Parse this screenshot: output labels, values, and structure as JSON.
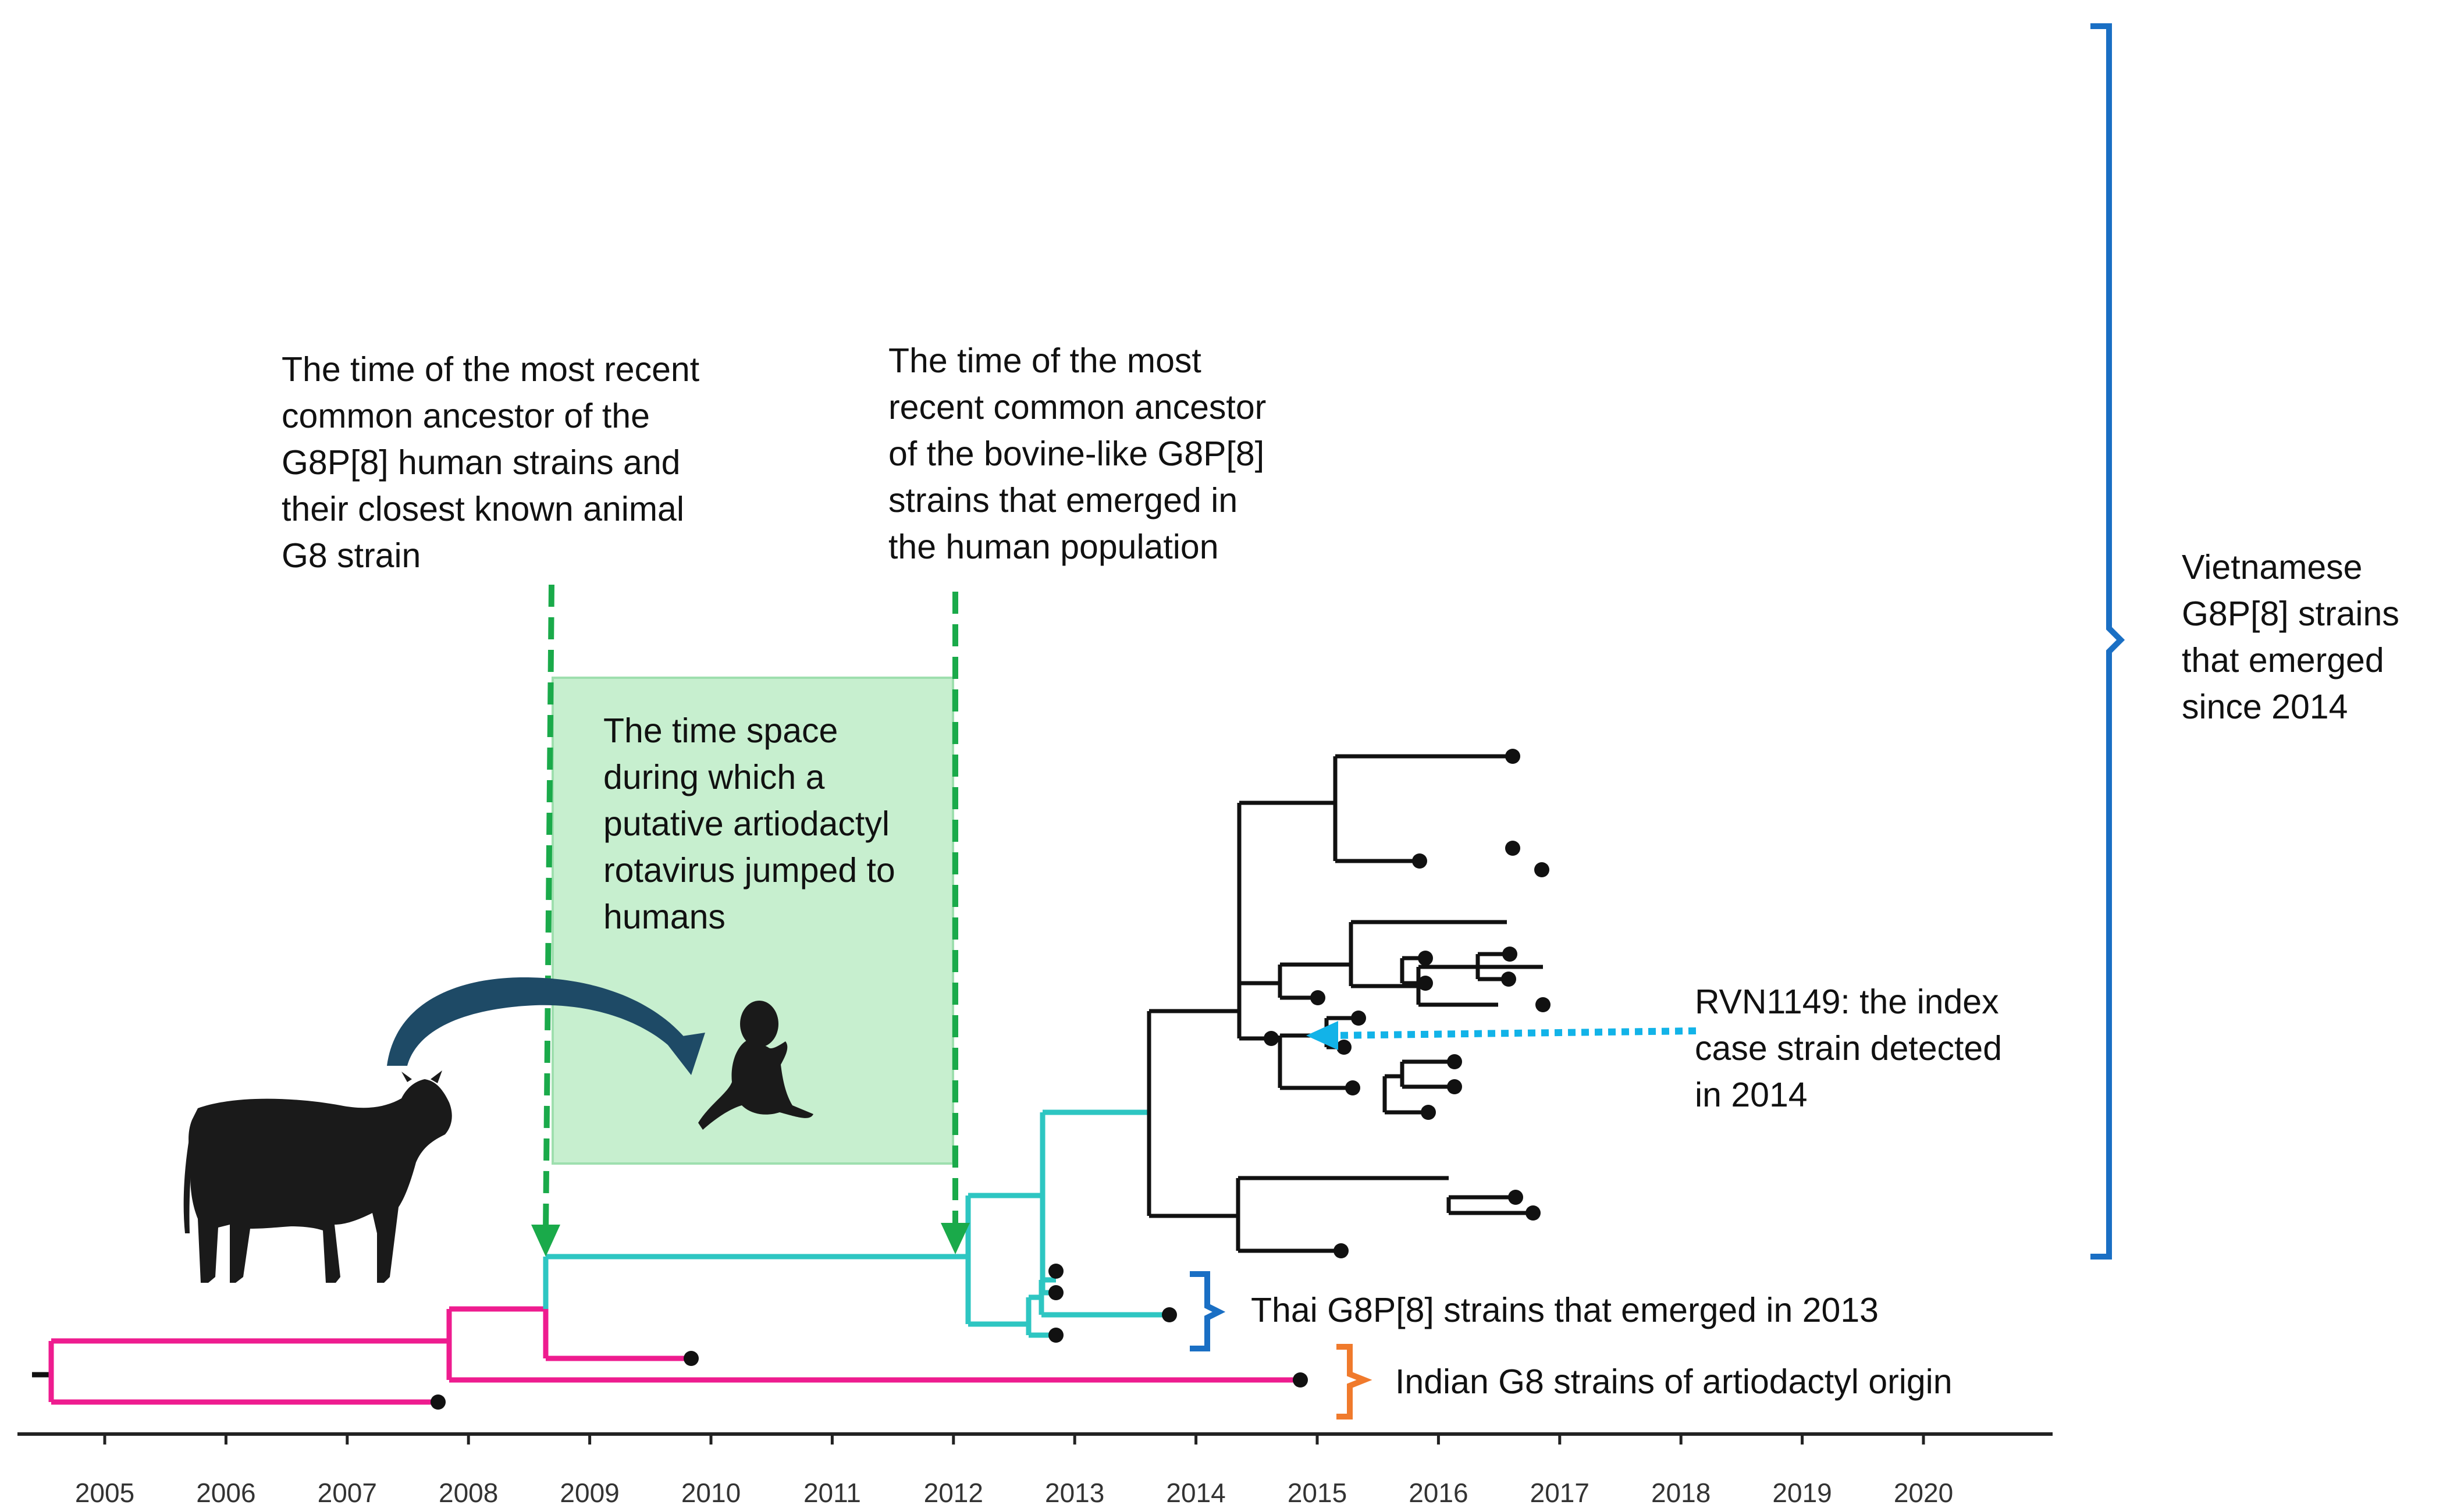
{
  "colors": {
    "pink": "#ee1c8f",
    "teal": "#2ec6c2",
    "black": "#111111",
    "green": "#1aaa4a",
    "green_fill": "#c7efcf",
    "navy": "#1e4a66",
    "blue_bracket": "#1a6fc4",
    "orange_bracket": "#f07a2c",
    "dotted_arrow": "#12b3e8"
  },
  "timeline": {
    "years": [
      "2005",
      "2006",
      "2007",
      "2008",
      "2009",
      "2010",
      "2011",
      "2012",
      "2013",
      "2014",
      "2015",
      "2016",
      "2017",
      "2018",
      "2019",
      "2020"
    ]
  },
  "annotations": {
    "tmrca_animal": "The time of the most recent\ncommon ancestor of the\nG8P[8] human strains and\ntheir closest known animal\nG8 strain",
    "tmrca_bovine": "The time of the most\nrecent common ancestor\nof the bovine-like G8P[8]\nstrains that emerged in\nthe human population",
    "time_space": "The time space\nduring which a\nputative artiodactyl\nrotavirus jumped to\nhumans",
    "index_case": "RVN1149: the index\ncase strain detected\nin 2014",
    "vietnamese": "Vietnamese\nG8P[8] strains\nthat emerged\nsince 2014",
    "thai": "Thai G8P[8] strains that emerged in 2013",
    "indian": "Indian G8 strains of artiodactyl origin"
  },
  "icons": {
    "cow": "cow-silhouette-icon",
    "baby": "baby-silhouette-icon",
    "jump_arrow": "curved-arrow-icon"
  }
}
